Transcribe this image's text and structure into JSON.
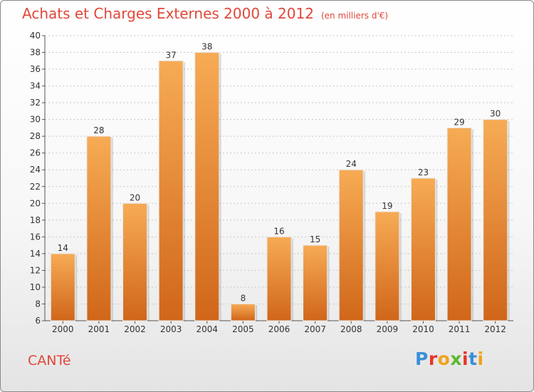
{
  "header": {
    "title": "Achats et Charges Externes 2000 à 2012",
    "subtitle": "(en milliers d'€)"
  },
  "footer": {
    "commune": "CANTé",
    "logo_text": "Proxiti",
    "logo_colors": [
      "#3b8fd6",
      "#e8342c",
      "#f1a21a",
      "#5cb82e",
      "#e8342c",
      "#3b8fd6",
      "#f1a21a"
    ]
  },
  "chart_data": {
    "type": "bar",
    "categories": [
      "2000",
      "2001",
      "2002",
      "2003",
      "2004",
      "2005",
      "2006",
      "2007",
      "2008",
      "2009",
      "2010",
      "2011",
      "2012"
    ],
    "values": [
      14,
      28,
      20,
      37,
      38,
      8,
      16,
      15,
      24,
      19,
      23,
      29,
      30
    ],
    "ylim": [
      6,
      40
    ],
    "yticks": [
      6,
      8,
      10,
      12,
      14,
      16,
      18,
      20,
      22,
      24,
      26,
      28,
      30,
      32,
      34,
      36,
      38,
      40
    ],
    "grid": true,
    "bar_color": "#f0913a",
    "bar_color_light": "#f7ab55",
    "bar_color_dark": "#d0661a"
  }
}
